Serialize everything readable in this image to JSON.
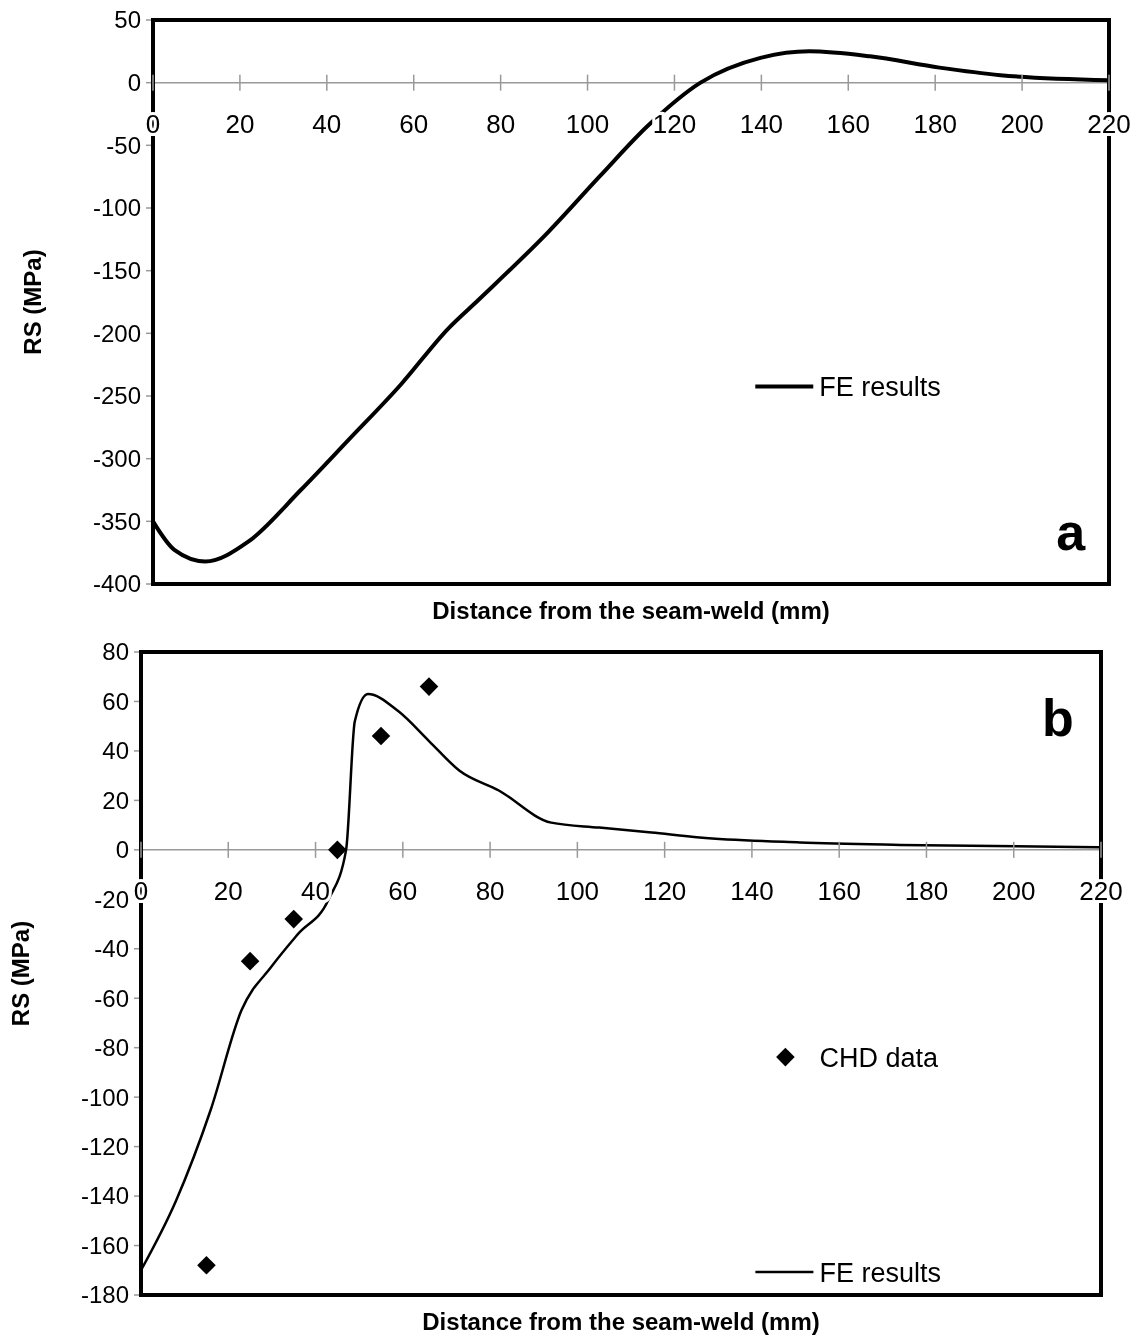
{
  "chart_data": [
    {
      "type": "line",
      "xlabel": "Distance from the seam-weld (mm)",
      "ylabel": "RS (MPa)",
      "xlim": [
        0,
        220
      ],
      "xticks": [
        0,
        20,
        40,
        60,
        80,
        100,
        120,
        140,
        160,
        180,
        200,
        220
      ],
      "ylim": [
        -400,
        50
      ],
      "yticks": [
        50,
        0,
        -50,
        -100,
        -150,
        -200,
        -250,
        -300,
        -350,
        -400
      ],
      "grid": false,
      "legend": "right",
      "annotations": [
        "a"
      ],
      "series": [
        {
          "name": "FE results",
          "color": "#000000",
          "line_style": "solid",
          "x": [
            0,
            5,
            12,
            22,
            34,
            45,
            57,
            68,
            75,
            91,
            103,
            114,
            126,
            140,
            151,
            165,
            181,
            195,
            220
          ],
          "values": [
            -350,
            -373,
            -382,
            -366,
            -325,
            -285,
            -241,
            -196,
            -173,
            -119,
            -74,
            -34,
            0,
            20,
            25,
            21,
            12,
            6,
            2
          ]
        }
      ]
    },
    {
      "type": "line",
      "xlabel": "Distance from the seam-weld (mm)",
      "ylabel": "RS (MPa)",
      "xlim": [
        0,
        220
      ],
      "xticks": [
        0,
        20,
        40,
        60,
        80,
        100,
        120,
        140,
        160,
        180,
        200,
        220
      ],
      "ylim": [
        -180,
        80
      ],
      "yticks": [
        80,
        60,
        40,
        20,
        0,
        -20,
        -40,
        -60,
        -80,
        -100,
        -120,
        -140,
        -160,
        -180
      ],
      "grid": false,
      "legend": "bottom right",
      "annotations": [
        "b"
      ],
      "series": [
        {
          "name": "CHD data",
          "type": "scatter",
          "color": "#000000",
          "marker": "diamond",
          "x": [
            15,
            25,
            35,
            45,
            55,
            66
          ],
          "values": [
            -168,
            -45,
            -28,
            0,
            46,
            66
          ]
        },
        {
          "name": "FE results",
          "color": "#000000",
          "line_style": "solid",
          "x": [
            0,
            8,
            16,
            23,
            30,
            36,
            43,
            47,
            49,
            52,
            59,
            66,
            73,
            82,
            94,
            105,
            117,
            128,
            151,
            174,
            220
          ],
          "values": [
            -170,
            -142,
            -105,
            -65,
            -47,
            -34,
            -20,
            0,
            52,
            63,
            56,
            44,
            32,
            24,
            11,
            9,
            7,
            5,
            3,
            2,
            1
          ]
        }
      ]
    }
  ]
}
